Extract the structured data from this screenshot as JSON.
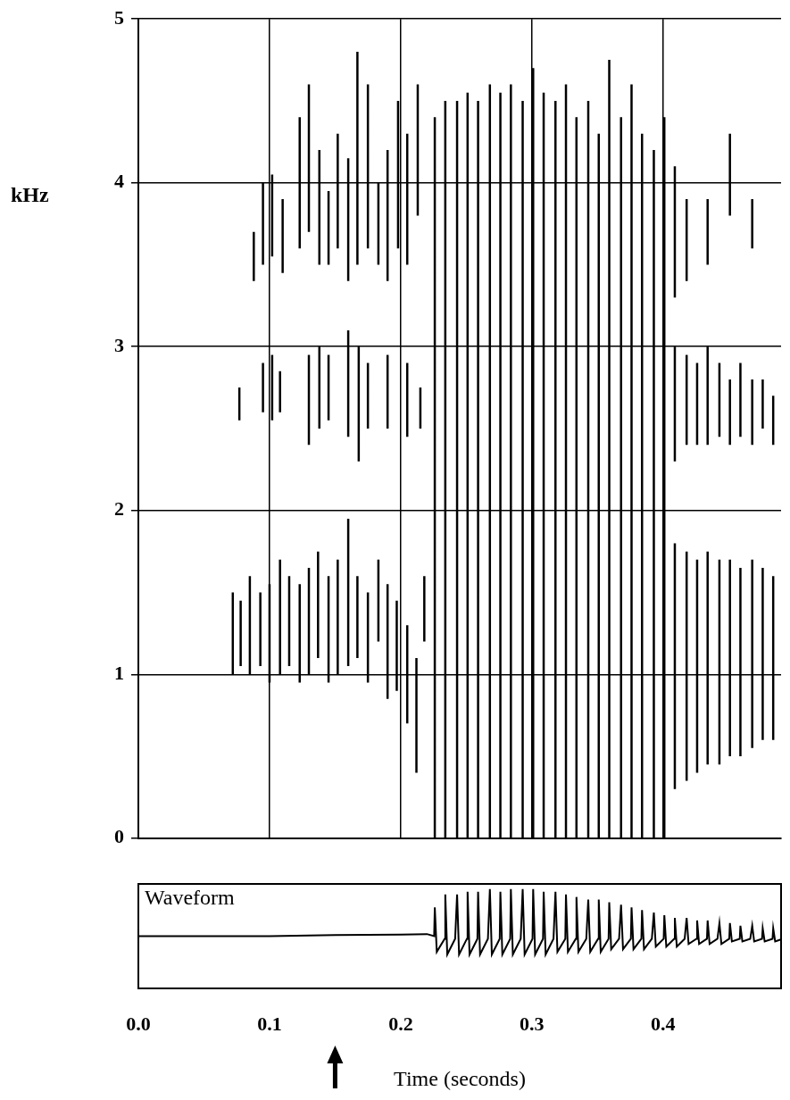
{
  "chart_data": [
    {
      "type": "spectrogram",
      "y_label": "kHz",
      "xlim": [
        0,
        0.49
      ],
      "xticks": [
        0,
        0.1,
        0.2,
        0.3,
        0.4
      ],
      "ylim": [
        0,
        5
      ],
      "yticks": [
        0,
        1,
        2,
        3,
        4,
        5
      ],
      "grid": true,
      "tick_labels": "y",
      "color": "#000000",
      "segments": [
        [
          0.072,
          1.0,
          1.5
        ],
        [
          0.078,
          1.05,
          1.45
        ],
        [
          0.085,
          1.0,
          1.6
        ],
        [
          0.093,
          1.05,
          1.5
        ],
        [
          0.1,
          0.95,
          1.55
        ],
        [
          0.108,
          1.0,
          1.7
        ],
        [
          0.115,
          1.05,
          1.6
        ],
        [
          0.123,
          0.95,
          1.55
        ],
        [
          0.13,
          1.0,
          1.65
        ],
        [
          0.137,
          1.1,
          1.75
        ],
        [
          0.145,
          0.95,
          1.6
        ],
        [
          0.152,
          1.0,
          1.7
        ],
        [
          0.16,
          1.05,
          1.95
        ],
        [
          0.167,
          1.1,
          1.6
        ],
        [
          0.175,
          0.95,
          1.5
        ],
        [
          0.183,
          1.2,
          1.7
        ],
        [
          0.19,
          0.85,
          1.55
        ],
        [
          0.197,
          0.9,
          1.45
        ],
        [
          0.205,
          0.7,
          1.3
        ],
        [
          0.212,
          0.4,
          1.1
        ],
        [
          0.218,
          1.2,
          1.6
        ],
        [
          0.077,
          2.55,
          2.75
        ],
        [
          0.095,
          2.6,
          2.9
        ],
        [
          0.102,
          2.55,
          2.95
        ],
        [
          0.108,
          2.6,
          2.85
        ],
        [
          0.13,
          2.4,
          2.95
        ],
        [
          0.138,
          2.5,
          3.0
        ],
        [
          0.145,
          2.55,
          2.95
        ],
        [
          0.16,
          2.45,
          3.1
        ],
        [
          0.168,
          2.3,
          3.0
        ],
        [
          0.175,
          2.5,
          2.9
        ],
        [
          0.19,
          2.5,
          2.95
        ],
        [
          0.205,
          2.45,
          2.9
        ],
        [
          0.215,
          2.5,
          2.75
        ],
        [
          0.088,
          3.4,
          3.7
        ],
        [
          0.095,
          3.5,
          4.0
        ],
        [
          0.102,
          3.55,
          4.05
        ],
        [
          0.11,
          3.45,
          3.9
        ],
        [
          0.123,
          3.6,
          4.4
        ],
        [
          0.13,
          3.7,
          4.6
        ],
        [
          0.138,
          3.5,
          4.2
        ],
        [
          0.145,
          3.5,
          3.95
        ],
        [
          0.152,
          3.6,
          4.3
        ],
        [
          0.16,
          3.4,
          4.15
        ],
        [
          0.167,
          3.5,
          4.8
        ],
        [
          0.175,
          3.6,
          4.6
        ],
        [
          0.183,
          3.5,
          4.0
        ],
        [
          0.19,
          3.4,
          4.2
        ],
        [
          0.198,
          3.6,
          4.5
        ],
        [
          0.205,
          3.5,
          4.3
        ],
        [
          0.213,
          3.8,
          4.6
        ],
        [
          0.226,
          0,
          4.4
        ],
        [
          0.234,
          0,
          4.5
        ],
        [
          0.243,
          0,
          4.5
        ],
        [
          0.251,
          0,
          4.55
        ],
        [
          0.259,
          0,
          4.5
        ],
        [
          0.268,
          0,
          4.6
        ],
        [
          0.276,
          0,
          4.55
        ],
        [
          0.284,
          0,
          4.6
        ],
        [
          0.293,
          0,
          4.5
        ],
        [
          0.301,
          0,
          4.7
        ],
        [
          0.309,
          0,
          4.55
        ],
        [
          0.318,
          0,
          4.5
        ],
        [
          0.326,
          0,
          4.6
        ],
        [
          0.334,
          0,
          4.4
        ],
        [
          0.343,
          0,
          4.5
        ],
        [
          0.351,
          0,
          4.3
        ],
        [
          0.359,
          0,
          4.75
        ],
        [
          0.368,
          0,
          4.4
        ],
        [
          0.376,
          0,
          4.6
        ],
        [
          0.384,
          0,
          4.3
        ],
        [
          0.393,
          0,
          4.2
        ],
        [
          0.401,
          0,
          4.4
        ],
        [
          0.409,
          0.3,
          1.8
        ],
        [
          0.409,
          2.3,
          3.0
        ],
        [
          0.409,
          3.3,
          4.1
        ],
        [
          0.418,
          0.35,
          1.75
        ],
        [
          0.418,
          2.4,
          2.95
        ],
        [
          0.418,
          3.4,
          3.9
        ],
        [
          0.426,
          0.4,
          1.7
        ],
        [
          0.426,
          2.4,
          2.9
        ],
        [
          0.434,
          0.45,
          1.75
        ],
        [
          0.434,
          2.4,
          3.0
        ],
        [
          0.434,
          3.5,
          3.9
        ],
        [
          0.443,
          0.45,
          1.7
        ],
        [
          0.443,
          2.45,
          2.9
        ],
        [
          0.451,
          0.5,
          1.7
        ],
        [
          0.451,
          2.4,
          2.8
        ],
        [
          0.451,
          3.8,
          4.3
        ],
        [
          0.459,
          0.5,
          1.65
        ],
        [
          0.459,
          2.45,
          2.9
        ],
        [
          0.468,
          0.55,
          1.7
        ],
        [
          0.468,
          2.4,
          2.8
        ],
        [
          0.468,
          3.6,
          3.9
        ],
        [
          0.476,
          0.6,
          1.65
        ],
        [
          0.476,
          2.5,
          2.8
        ],
        [
          0.484,
          0.6,
          1.6
        ],
        [
          0.484,
          2.4,
          2.7
        ]
      ]
    },
    {
      "type": "line",
      "title": "Waveform",
      "x_label": "Time (seconds)",
      "xlim": [
        0,
        0.49
      ],
      "xticks": [
        {
          "value": 0,
          "label": "0.0"
        },
        0.1,
        0.2,
        0.3,
        0.4
      ],
      "ylim": [
        -1,
        1
      ],
      "grid": false,
      "tick_labels": "x",
      "color": "#000000",
      "arrow_x": 0.15,
      "x": [
        0,
        0.1,
        0.15,
        0.2,
        0.22,
        0.2255,
        0.226,
        0.2275,
        0.2335,
        0.234,
        0.2355,
        0.2415,
        0.243,
        0.2445,
        0.2505,
        0.251,
        0.2525,
        0.2585,
        0.259,
        0.2605,
        0.2665,
        0.268,
        0.2695,
        0.2755,
        0.276,
        0.2775,
        0.2835,
        0.284,
        0.2855,
        0.2915,
        0.293,
        0.2945,
        0.3005,
        0.301,
        0.3025,
        0.3085,
        0.309,
        0.3105,
        0.3165,
        0.318,
        0.3195,
        0.3255,
        0.326,
        0.3275,
        0.3335,
        0.334,
        0.3355,
        0.3415,
        0.343,
        0.3445,
        0.3505,
        0.351,
        0.3525,
        0.3585,
        0.359,
        0.3605,
        0.3665,
        0.368,
        0.3695,
        0.3755,
        0.376,
        0.3775,
        0.3835,
        0.384,
        0.3855,
        0.3915,
        0.393,
        0.3945,
        0.4005,
        0.401,
        0.4025,
        0.4085,
        0.409,
        0.4105,
        0.4165,
        0.418,
        0.4195,
        0.4255,
        0.426,
        0.4275,
        0.4335,
        0.434,
        0.4355,
        0.4415,
        0.443,
        0.4445,
        0.4505,
        0.451,
        0.4525,
        0.4585,
        0.459,
        0.4605,
        0.4665,
        0.468,
        0.4695,
        0.4755,
        0.476,
        0.4775,
        0.4835,
        0.484,
        0.4855,
        0.4915
      ],
      "values": [
        0,
        0,
        0.02,
        0.03,
        0.04,
        0,
        0.55,
        -0.3,
        -0.05,
        0.8,
        -0.35,
        -0.05,
        0.8,
        -0.35,
        -0.05,
        0.85,
        -0.35,
        -0.05,
        0.85,
        -0.35,
        -0.05,
        0.9,
        -0.35,
        -0.05,
        0.85,
        -0.35,
        -0.05,
        0.9,
        -0.35,
        -0.05,
        0.9,
        -0.35,
        -0.05,
        0.9,
        -0.35,
        -0.05,
        0.85,
        -0.35,
        -0.05,
        0.85,
        -0.3,
        -0.05,
        0.8,
        -0.3,
        -0.05,
        0.75,
        -0.3,
        -0.05,
        0.7,
        -0.3,
        -0.05,
        0.7,
        -0.3,
        -0.05,
        0.65,
        -0.25,
        -0.05,
        0.6,
        -0.25,
        -0.05,
        0.55,
        -0.25,
        -0.05,
        0.5,
        -0.25,
        -0.05,
        0.45,
        -0.2,
        -0.05,
        0.4,
        -0.2,
        -0.05,
        0.35,
        -0.2,
        -0.05,
        0.35,
        -0.15,
        -0.05,
        0.3,
        -0.15,
        -0.05,
        0.3,
        -0.15,
        -0.05,
        0.25,
        -0.15,
        -0.05,
        0.25,
        -0.1,
        -0.05,
        0.2,
        -0.1,
        -0.05,
        0.2,
        -0.1,
        -0.05,
        0.15,
        -0.1,
        -0.05,
        0.15,
        -0.1,
        -0.05
      ]
    }
  ]
}
